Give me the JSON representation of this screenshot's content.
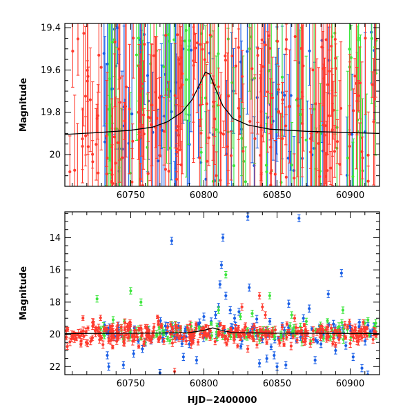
{
  "chart_data": [
    {
      "id": "top",
      "type": "scatter",
      "title": "",
      "xlabel": "",
      "ylabel": "Magnitude",
      "xlim": [
        60705,
        60920
      ],
      "ylim": [
        20.15,
        19.38
      ],
      "y_inverted": true,
      "xticks": [
        60750,
        60800,
        60850,
        60900
      ],
      "xtick_labels": [
        "60750",
        "60800",
        "60850",
        "60900"
      ],
      "yticks": [
        19.4,
        19.6,
        19.8,
        20.0
      ],
      "ytick_labels": [
        "19.4",
        "19.6",
        "19.8",
        "20"
      ],
      "x_minor_step": 10,
      "y_minor_step": 0.05,
      "grid": false,
      "legend": "none",
      "model_curve": {
        "color": "#000000",
        "x": [
          60705,
          60730,
          60750,
          60765,
          60775,
          60785,
          60792,
          60797,
          60801,
          60804,
          60808,
          60813,
          60820,
          60830,
          60845,
          60870,
          60920
        ],
        "y": [
          19.905,
          19.895,
          19.885,
          19.87,
          19.845,
          19.8,
          19.74,
          19.67,
          19.61,
          19.62,
          19.69,
          19.77,
          19.83,
          19.86,
          19.88,
          19.89,
          19.9
        ]
      },
      "series": [
        {
          "color": "#1a5fe6",
          "seed": 11,
          "n": 90,
          "x_range": [
            60728,
            60918
          ],
          "center": 19.8,
          "spread": 0.4,
          "err": [
            0.15,
            0.5
          ]
        },
        {
          "color": "#3ee63e",
          "seed": 23,
          "n": 90,
          "x_range": [
            60728,
            60918
          ],
          "center": 19.8,
          "spread": 0.4,
          "err": [
            0.15,
            0.5
          ]
        },
        {
          "color": "#ff3b2f",
          "seed": 37,
          "n": 230,
          "x_range": [
            60706,
            60918
          ],
          "center": 19.8,
          "spread": 0.38,
          "err": [
            0.06,
            0.45
          ]
        }
      ]
    },
    {
      "id": "bottom",
      "type": "scatter",
      "title": "",
      "xlabel": "HJD−2400000",
      "ylabel": "Magnitude",
      "xlim": [
        60705,
        60920
      ],
      "ylim": [
        22.5,
        12.4
      ],
      "y_inverted": true,
      "xticks": [
        60750,
        60800,
        60850,
        60900
      ],
      "xtick_labels": [
        "60750",
        "60800",
        "60850",
        "60900"
      ],
      "yticks": [
        14,
        16,
        18,
        20,
        22
      ],
      "ytick_labels": [
        "14",
        "16",
        "18",
        "20",
        "22"
      ],
      "x_minor_step": 10,
      "y_minor_step": 0.5,
      "grid": false,
      "legend": "none",
      "model_curve": {
        "color": "#000000",
        "x": [
          60705,
          60760,
          60790,
          60800,
          60806,
          60812,
          60820,
          60850,
          60920
        ],
        "y": [
          19.95,
          19.93,
          19.9,
          19.75,
          19.6,
          19.75,
          19.9,
          19.93,
          19.95
        ]
      },
      "series": [
        {
          "color": "#1a5fe6",
          "points": [
            [
              60734,
              21.3
            ],
            [
              60735,
              22.0
            ],
            [
              60745,
              21.9
            ],
            [
              60752,
              21.2
            ],
            [
              60758,
              20.9
            ],
            [
              60770,
              22.4
            ],
            [
              60778,
              14.2
            ],
            [
              60786,
              21.4
            ],
            [
              60795,
              21.6
            ],
            [
              60805,
              19.2
            ],
            [
              60808,
              18.8
            ],
            [
              60810,
              18.3
            ],
            [
              60811,
              16.9
            ],
            [
              60812,
              15.7
            ],
            [
              60813,
              14.0
            ],
            [
              60815,
              17.6
            ],
            [
              60818,
              18.5
            ],
            [
              60821,
              19.0
            ],
            [
              60824,
              18.6
            ],
            [
              60826,
              20.4
            ],
            [
              60830,
              12.7
            ],
            [
              60831,
              17.1
            ],
            [
              60838,
              21.8
            ],
            [
              60843,
              21.5
            ],
            [
              60848,
              21.3
            ],
            [
              60850,
              22.0
            ],
            [
              60856,
              21.9
            ],
            [
              60858,
              18.1
            ],
            [
              60865,
              12.8
            ],
            [
              60872,
              18.4
            ],
            [
              60876,
              21.6
            ],
            [
              60885,
              17.5
            ],
            [
              60890,
              21.0
            ],
            [
              60894,
              16.2
            ],
            [
              60897,
              20.7
            ],
            [
              60902,
              21.4
            ],
            [
              60908,
              22.1
            ],
            [
              60912,
              22.5
            ],
            [
              60760,
              20.5
            ],
            [
              60790,
              20.6
            ],
            [
              60800,
              18.9
            ],
            [
              60840,
              20.3
            ],
            [
              60868,
              19.0
            ],
            [
              60880,
              20.6
            ]
          ],
          "err": 0.22,
          "bg_seed": 41,
          "bg_n": 110,
          "bg_center": 19.85,
          "bg_spread": 0.35,
          "bg_x_range": [
            60730,
            60918
          ]
        },
        {
          "color": "#3ee63e",
          "points": [
            [
              60727,
              17.8
            ],
            [
              60738,
              19.1
            ],
            [
              60750,
              17.3
            ],
            [
              60757,
              18.0
            ],
            [
              60778,
              19.4
            ],
            [
              60810,
              18.5
            ],
            [
              60815,
              16.3
            ],
            [
              60825,
              18.9
            ],
            [
              60833,
              18.7
            ],
            [
              60845,
              17.6
            ],
            [
              60860,
              18.8
            ],
            [
              60870,
              19.2
            ],
            [
              60895,
              18.5
            ],
            [
              60910,
              19.3
            ]
          ],
          "err": 0.2,
          "bg_seed": 53,
          "bg_n": 110,
          "bg_center": 19.85,
          "bg_spread": 0.32,
          "bg_x_range": [
            60728,
            60918
          ]
        },
        {
          "color": "#ff3b2f",
          "points": [
            [
              60780,
              22.3
            ],
            [
              60826,
              18.3
            ],
            [
              60838,
              17.6
            ],
            [
              60840,
              18.3
            ],
            [
              60842,
              18.8
            ],
            [
              60830,
              20.9
            ],
            [
              60862,
              19.0
            ]
          ],
          "err": 0.2,
          "bg_seed": 67,
          "bg_n": 340,
          "bg_center": 19.95,
          "bg_spread": 0.3,
          "bg_x_range": [
            60706,
            60918
          ]
        }
      ]
    }
  ]
}
